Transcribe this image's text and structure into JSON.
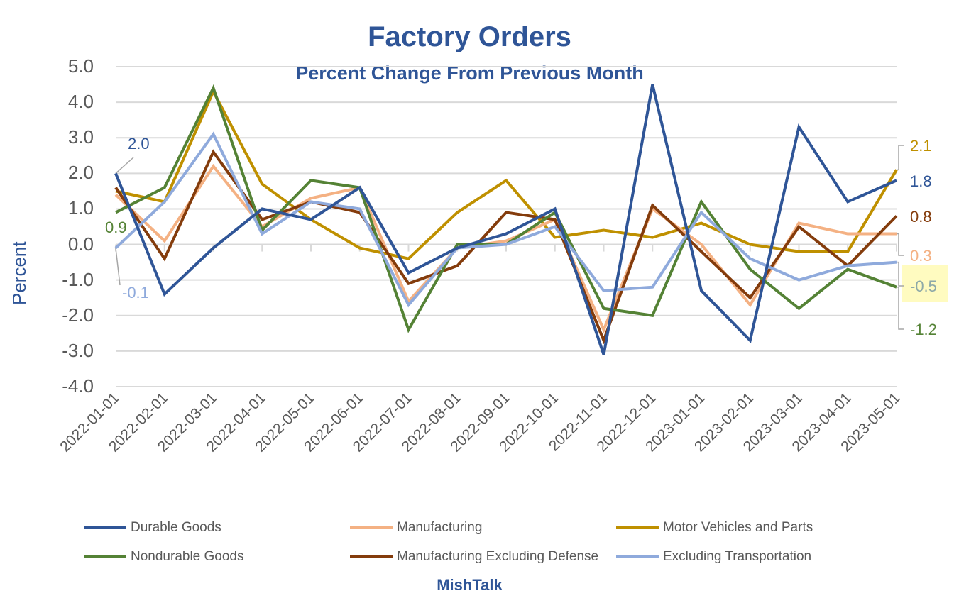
{
  "chart_data": {
    "type": "line",
    "title": "Factory Orders",
    "subtitle": "Percent Change From Previous Month",
    "xlabel": "",
    "ylabel": "Percent",
    "ylim": [
      -4.0,
      5.0
    ],
    "yticks": [
      "5.0",
      "4.0",
      "3.0",
      "2.0",
      "1.0",
      "0.0",
      "-1.0",
      "-2.0",
      "-3.0",
      "-4.0"
    ],
    "grid": true,
    "legend_position": "bottom",
    "categories": [
      "2022-01-01",
      "2022-02-01",
      "2022-03-01",
      "2022-04-01",
      "2022-05-01",
      "2022-06-01",
      "2022-07-01",
      "2022-08-01",
      "2022-09-01",
      "2022-10-01",
      "2022-11-01",
      "2022-12-01",
      "2023-01-01",
      "2023-02-01",
      "2023-03-01",
      "2023-04-01",
      "2023-05-01"
    ],
    "series": [
      {
        "name": "Durable Goods",
        "color": "#2F5597",
        "values": [
          2.0,
          -1.4,
          -0.1,
          1.0,
          0.7,
          1.6,
          -0.8,
          -0.1,
          0.3,
          1.0,
          -3.1,
          4.5,
          -1.3,
          -2.7,
          3.3,
          1.2,
          1.8
        ]
      },
      {
        "name": "Manufacturing",
        "color": "#F4B183",
        "values": [
          1.4,
          0.1,
          2.2,
          0.5,
          1.3,
          1.6,
          -1.6,
          -0.1,
          0.1,
          0.7,
          -2.4,
          1.0,
          0.0,
          -1.7,
          0.6,
          0.3,
          0.3
        ]
      },
      {
        "name": "Motor Vehicles and Parts",
        "color": "#BF9000",
        "values": [
          1.5,
          1.2,
          4.3,
          1.7,
          0.7,
          -0.1,
          -0.4,
          0.9,
          1.8,
          0.2,
          0.4,
          0.2,
          0.6,
          0.0,
          -0.2,
          -0.2,
          2.1
        ]
      },
      {
        "name": "Nondurable Goods",
        "color": "#548235",
        "values": [
          0.9,
          1.6,
          4.4,
          0.4,
          1.8,
          1.6,
          -2.4,
          0.0,
          0.0,
          0.9,
          -1.8,
          -2.0,
          1.2,
          -0.7,
          -1.8,
          -0.7,
          -1.2
        ]
      },
      {
        "name": "Manufacturing Excluding Defense",
        "color": "#843C0C",
        "values": [
          1.6,
          -0.4,
          2.6,
          0.7,
          1.2,
          0.9,
          -1.1,
          -0.6,
          0.9,
          0.7,
          -2.7,
          1.1,
          -0.2,
          -1.5,
          0.5,
          -0.6,
          0.8
        ]
      },
      {
        "name": "Excluding Transportation",
        "color": "#8FAADC",
        "values": [
          -0.1,
          1.2,
          3.1,
          0.3,
          1.2,
          1.0,
          -1.7,
          -0.1,
          0.0,
          0.5,
          -1.3,
          -1.2,
          0.9,
          -0.4,
          -1.0,
          -0.6,
          -0.5
        ]
      }
    ],
    "annotations": {
      "start": [
        {
          "text": "2.0",
          "series": 0
        },
        {
          "text": "0.9",
          "series": 3
        },
        {
          "text": "-0.1",
          "series": 5
        }
      ],
      "end": [
        {
          "text": "2.1",
          "series": 2
        },
        {
          "text": "1.8",
          "series": 0
        },
        {
          "text": "0.8",
          "series": 4
        },
        {
          "text": "0.3",
          "series": 1
        },
        {
          "text": "-0.5",
          "series": 5,
          "highlight": "#FFFBC0"
        },
        {
          "text": "-1.2",
          "series": 3
        }
      ]
    }
  },
  "credit": "MishTalk"
}
